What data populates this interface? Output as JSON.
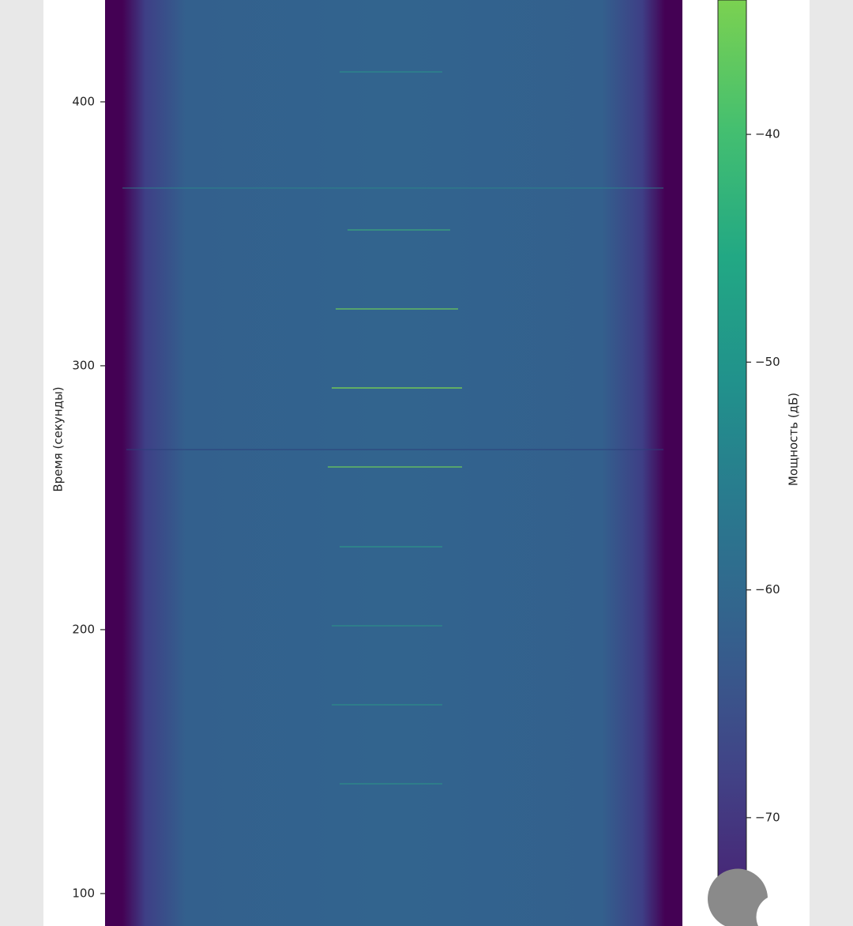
{
  "chart_data": {
    "type": "heatmap",
    "ylabel": "Время (секунды)",
    "ylim": [
      438.6,
      87.7
    ],
    "yticks": [
      100,
      200,
      300,
      400
    ],
    "colormap": "viridis",
    "clim": [
      -79,
      -23
    ],
    "colorbar_label": "Мощность (дБ)",
    "colorbar_lim": [
      -73.3,
      -34.1
    ],
    "colorbar_ticks": [
      {
        "value": -70,
        "label": "−70"
      },
      {
        "value": -60,
        "label": "−60"
      },
      {
        "value": -50,
        "label": "−50"
      },
      {
        "value": -40,
        "label": "−40"
      }
    ]
  }
}
